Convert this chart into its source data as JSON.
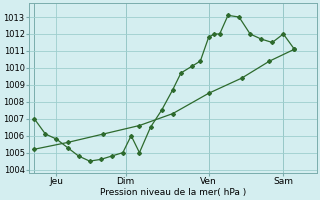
{
  "background_color": "#d4eef0",
  "grid_color": "#9ecece",
  "line_color": "#2d6a2d",
  "title": "Pression niveau de la mer( hPa )",
  "ylim": [
    1003.8,
    1013.8
  ],
  "yticks": [
    1004,
    1005,
    1006,
    1007,
    1008,
    1009,
    1010,
    1011,
    1012,
    1013
  ],
  "xlim": [
    -0.2,
    10.2
  ],
  "xtick_labels": [
    "Jeu",
    "Dim",
    "Ven",
    "Sam"
  ],
  "xtick_positions": [
    0.8,
    3.3,
    6.3,
    9.0
  ],
  "series1_x": [
    0.0,
    0.4,
    0.8,
    1.2,
    1.6,
    2.0,
    2.4,
    2.8,
    3.2,
    3.5,
    3.8,
    4.2,
    4.6,
    5.0,
    5.3,
    5.7,
    6.0,
    6.3,
    6.5,
    6.7,
    7.0,
    7.4,
    7.8,
    8.2,
    8.6,
    9.0,
    9.4
  ],
  "series1_y": [
    1007.0,
    1006.1,
    1005.8,
    1005.3,
    1004.8,
    1004.5,
    1004.6,
    1004.8,
    1005.0,
    1006.0,
    1005.0,
    1006.5,
    1007.5,
    1008.7,
    1009.7,
    1010.1,
    1010.4,
    1011.8,
    1012.0,
    1012.0,
    1013.1,
    1013.0,
    1012.0,
    1011.7,
    1011.5,
    1012.0,
    1011.1
  ],
  "series2_x": [
    0.0,
    1.2,
    2.5,
    3.8,
    5.0,
    6.3,
    7.5,
    8.5,
    9.4
  ],
  "series2_y": [
    1005.2,
    1005.6,
    1006.1,
    1006.6,
    1007.3,
    1008.5,
    1009.4,
    1010.4,
    1011.1
  ],
  "vline_positions": [
    0.0,
    3.3,
    6.3,
    9.0
  ]
}
